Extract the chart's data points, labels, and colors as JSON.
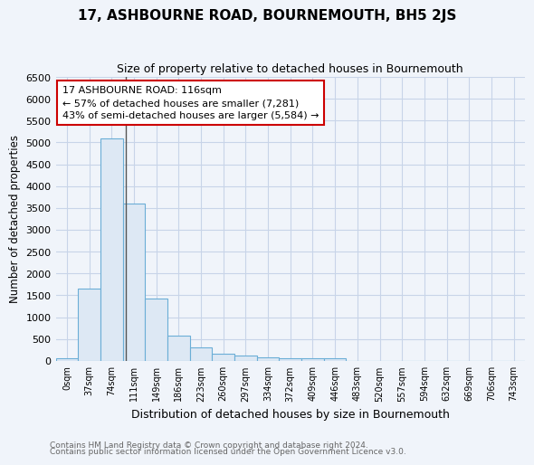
{
  "title": "17, ASHBOURNE ROAD, BOURNEMOUTH, BH5 2JS",
  "subtitle": "Size of property relative to detached houses in Bournemouth",
  "xlabel": "Distribution of detached houses by size in Bournemouth",
  "ylabel": "Number of detached properties",
  "footnote1": "Contains HM Land Registry data © Crown copyright and database right 2024.",
  "footnote2": "Contains public sector information licensed under the Open Government Licence v3.0.",
  "bar_labels": [
    "0sqm",
    "37sqm",
    "74sqm",
    "111sqm",
    "149sqm",
    "186sqm",
    "223sqm",
    "260sqm",
    "297sqm",
    "334sqm",
    "372sqm",
    "409sqm",
    "446sqm",
    "483sqm",
    "520sqm",
    "557sqm",
    "594sqm",
    "632sqm",
    "669sqm",
    "706sqm",
    "743sqm"
  ],
  "bar_values": [
    60,
    1650,
    5100,
    3600,
    1430,
    580,
    300,
    155,
    120,
    75,
    50,
    50,
    65,
    0,
    0,
    0,
    0,
    0,
    0,
    0,
    0
  ],
  "bar_color": "#dde8f4",
  "bar_edge_color": "#6baed6",
  "grid_color": "#c8d4e8",
  "background_color": "#f0f4fa",
  "plot_bg_color": "#f0f4fa",
  "annotation_text": "17 ASHBOURNE ROAD: 116sqm\n← 57% of detached houses are smaller (7,281)\n43% of semi-detached houses are larger (5,584) →",
  "annotation_box_color": "#ffffff",
  "annotation_box_edge": "#cc0000",
  "ylim": [
    0,
    6500
  ],
  "yticks": [
    0,
    500,
    1000,
    1500,
    2000,
    2500,
    3000,
    3500,
    4000,
    4500,
    5000,
    5500,
    6000,
    6500
  ]
}
